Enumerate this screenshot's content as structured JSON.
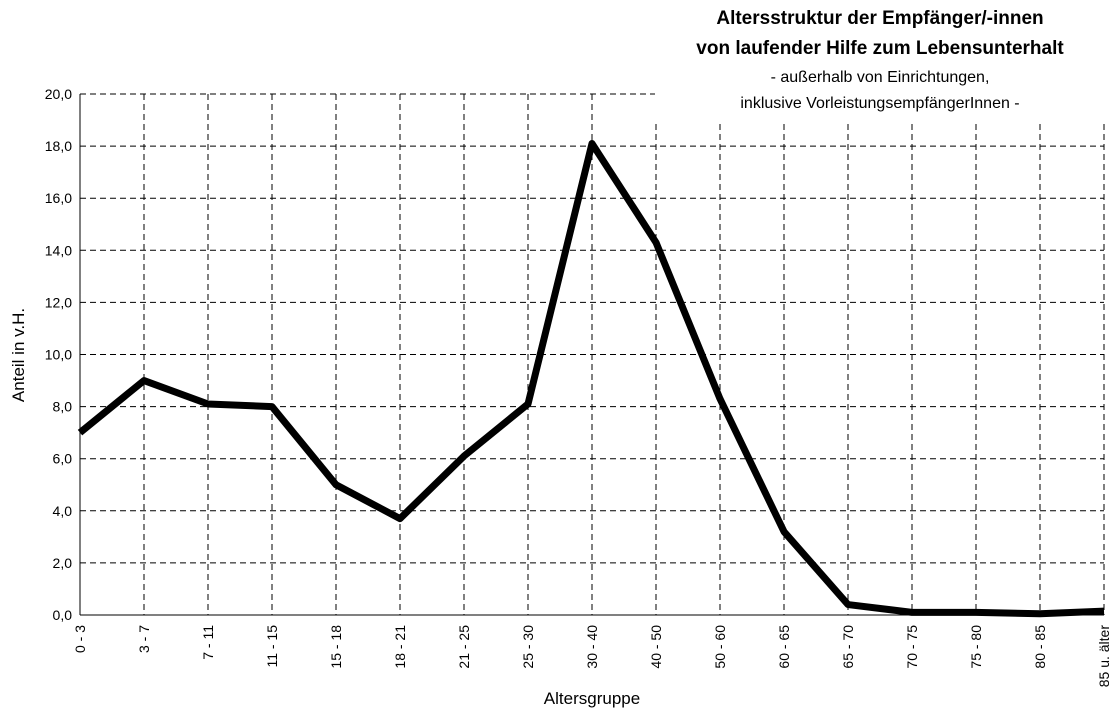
{
  "chart_data": {
    "type": "line",
    "title": [
      "Altersstruktur der Empfänger/-innen",
      "von laufender Hilfe zum Lebensunterhalt"
    ],
    "subtitle": [
      "- außerhalb von Einrichtungen,",
      "inklusive VorleistungsempfängerInnen -"
    ],
    "x_label": "Altersgruppe",
    "y_label": "Anteil in v.H.",
    "categories": [
      "0 - 3",
      "3 - 7",
      "7 - 11",
      "11 - 15",
      "15 - 18",
      "18 - 21",
      "21 - 25",
      "25 - 30",
      "30 - 40",
      "40 - 50",
      "50 - 60",
      "60 - 65",
      "65 - 70",
      "70 - 75",
      "75 - 80",
      "80 - 85",
      "85 u. älter"
    ],
    "series": [
      {
        "color": "#000000",
        "values": [
          7.0,
          9.0,
          8.1,
          8.0,
          5.0,
          3.7,
          6.1,
          8.1,
          18.1,
          14.3,
          8.3,
          3.2,
          0.4,
          0.1,
          0.1,
          0.05,
          0.15
        ]
      }
    ],
    "ylim": [
      0,
      20
    ],
    "yticks": [
      {
        "value": 0,
        "label": "0,0"
      },
      {
        "value": 2,
        "label": "2,0"
      },
      {
        "value": 4,
        "label": "4,0"
      },
      {
        "value": 6,
        "label": "6,0"
      },
      {
        "value": 8,
        "label": "8,0"
      },
      {
        "value": 10,
        "label": "10,0"
      },
      {
        "value": 12,
        "label": "12,0"
      },
      {
        "value": 14,
        "label": "14,0"
      },
      {
        "value": 16,
        "label": "16,0"
      },
      {
        "value": 18,
        "label": "18,0"
      },
      {
        "value": 20,
        "label": "20,0"
      }
    ],
    "grid": true
  }
}
